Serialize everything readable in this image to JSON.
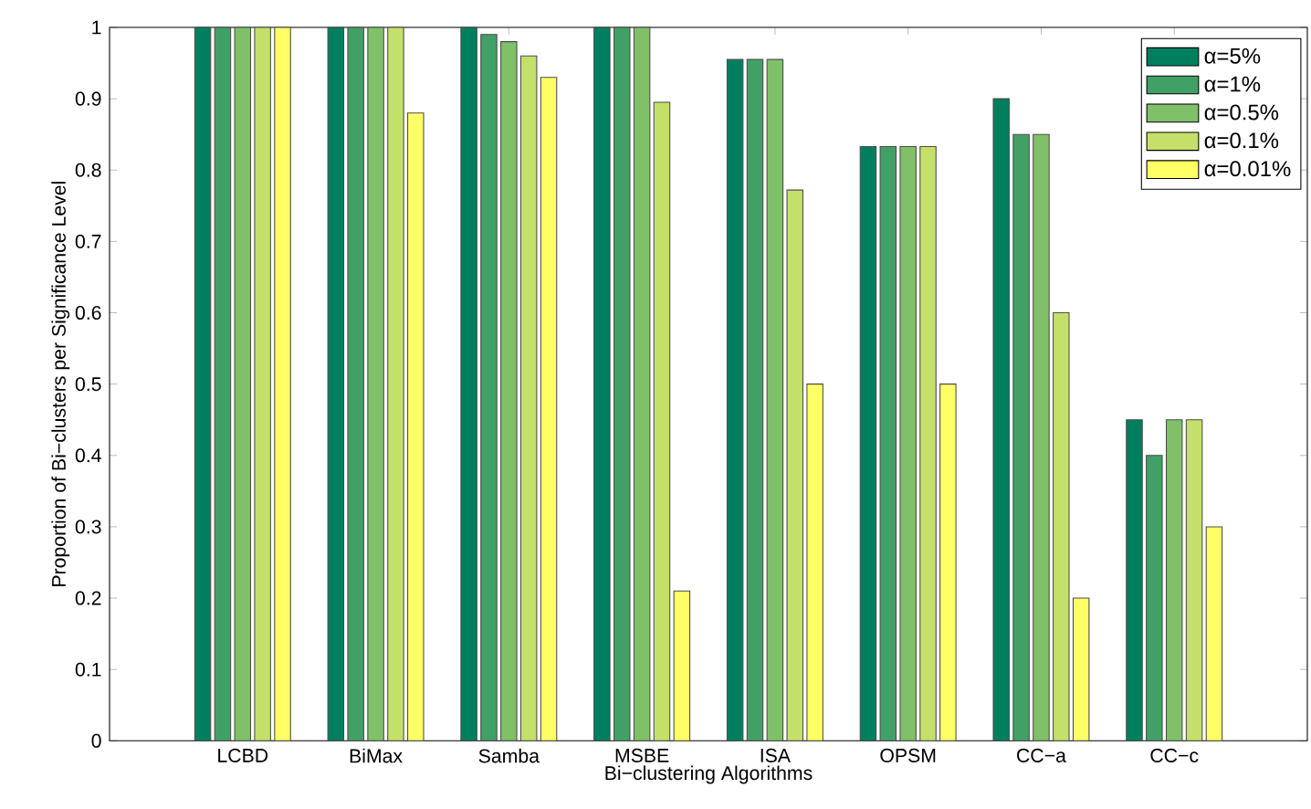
{
  "chart_data": {
    "type": "bar",
    "xlabel": "Bi−clustering Algorithms",
    "ylabel": "Proportion of Bi−clusters per Significance Level",
    "categories": [
      "LCBD",
      "BiMax",
      "Samba",
      "MSBE",
      "ISA",
      "OPSM",
      "CC−a",
      "CC−c"
    ],
    "series": [
      {
        "name": "α=5%",
        "color": "#007f5f",
        "values": [
          1,
          1,
          1,
          1,
          0.955,
          0.833,
          0.9,
          0.45
        ]
      },
      {
        "name": "α=1%",
        "color": "#41a066",
        "values": [
          1,
          1,
          0.99,
          1,
          0.955,
          0.833,
          0.85,
          0.4
        ]
      },
      {
        "name": "α=0.5%",
        "color": "#7fc068",
        "values": [
          1,
          1,
          0.98,
          1,
          0.955,
          0.833,
          0.85,
          0.45
        ]
      },
      {
        "name": "α=0.1%",
        "color": "#c4e06a",
        "values": [
          1,
          1,
          0.96,
          0.895,
          0.772,
          0.833,
          0.6,
          0.45
        ]
      },
      {
        "name": "α=0.01%",
        "color": "#ffff66",
        "values": [
          1,
          0.88,
          0.93,
          0.21,
          0.5,
          0.5,
          0.2,
          0.3
        ]
      }
    ],
    "ylim": [
      0,
      1
    ],
    "yticks": [
      0,
      0.1,
      0.2,
      0.3,
      0.4,
      0.5,
      0.6,
      0.7,
      0.8,
      0.9,
      1
    ],
    "grid": false,
    "legend": "top right"
  }
}
